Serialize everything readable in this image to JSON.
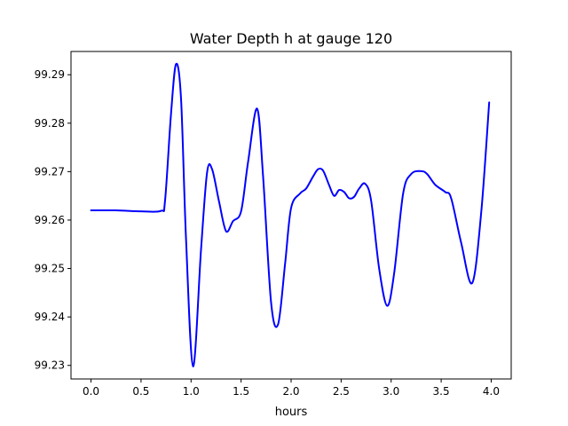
{
  "chart_data": {
    "type": "line",
    "title": "Water Depth h at gauge 120",
    "xlabel": "hours",
    "ylabel": "",
    "xlim": [
      -0.2,
      4.2
    ],
    "ylim": [
      99.2272,
      99.2948
    ],
    "x_ticks": [
      0.0,
      0.5,
      1.0,
      1.5,
      2.0,
      2.5,
      3.0,
      3.5,
      4.0
    ],
    "x_tick_labels": [
      "0.0",
      "0.5",
      "1.0",
      "1.5",
      "2.0",
      "2.5",
      "3.0",
      "3.5",
      "4.0"
    ],
    "y_ticks": [
      99.23,
      99.24,
      99.25,
      99.26,
      99.27,
      99.28,
      99.29
    ],
    "y_tick_labels": [
      "99.23",
      "99.24",
      "99.25",
      "99.26",
      "99.27",
      "99.28",
      "99.29"
    ],
    "grid": false,
    "legend": false,
    "series": [
      {
        "color": "#0000ff",
        "x": [
          0.0,
          0.25,
          0.5,
          0.7,
          0.74,
          0.8,
          0.85,
          0.9,
          0.95,
          1.02,
          1.1,
          1.16,
          1.21,
          1.28,
          1.35,
          1.42,
          1.5,
          1.57,
          1.66,
          1.72,
          1.8,
          1.87,
          1.94,
          2.0,
          2.09,
          2.15,
          2.22,
          2.27,
          2.32,
          2.38,
          2.43,
          2.48,
          2.53,
          2.58,
          2.63,
          2.68,
          2.74,
          2.8,
          2.88,
          2.96,
          3.03,
          3.12,
          3.2,
          3.3,
          3.36,
          3.44,
          3.54,
          3.6,
          3.7,
          3.81,
          3.9,
          3.98
        ],
        "y": [
          99.262,
          99.262,
          99.2618,
          99.2619,
          99.264,
          99.282,
          99.2922,
          99.285,
          99.256,
          99.2298,
          99.254,
          99.2698,
          99.2705,
          99.2638,
          99.2577,
          99.2598,
          99.2618,
          99.272,
          99.283,
          99.269,
          99.243,
          99.2385,
          99.251,
          99.2625,
          99.2655,
          99.2665,
          99.269,
          99.2705,
          99.2702,
          99.2672,
          99.265,
          99.2662,
          99.2658,
          99.2645,
          99.2648,
          99.2665,
          99.2675,
          99.264,
          99.25,
          99.2423,
          99.249,
          99.2655,
          99.2695,
          99.2701,
          99.2695,
          99.2673,
          99.2658,
          99.2645,
          99.2553,
          99.247,
          99.2615,
          99.2843
        ]
      }
    ]
  }
}
